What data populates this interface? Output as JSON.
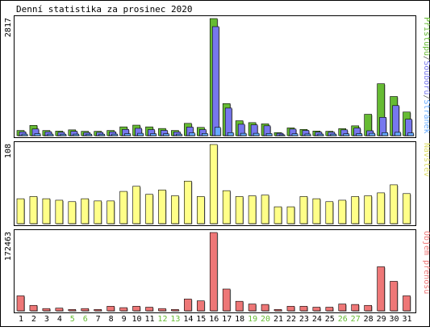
{
  "title": "Denní statistika za prosinec 2020",
  "colors": {
    "hits": "#66bb33",
    "files": "#7777ee",
    "pages": "#66aaff",
    "visits": "#ffff88",
    "kbytes": "#ee7777",
    "day_normal": "#000000",
    "day_weekend": "#66bb33",
    "frame": "#000000",
    "background": "#ffffff"
  },
  "chart_data": [
    {
      "type": "bar",
      "panel": "top",
      "ymax_label": "2817",
      "ylim": [
        0,
        2817
      ],
      "legend_placement": "right-vertical",
      "legend": {
        "pages": "Stránek",
        "separator1": "/",
        "files": "Souborů",
        "separator2": "/",
        "hits": "Přístupů"
      },
      "categories": [
        "1",
        "2",
        "3",
        "4",
        "5",
        "6",
        "7",
        "8",
        "9",
        "10",
        "11",
        "12",
        "13",
        "14",
        "15",
        "16",
        "17",
        "18",
        "19",
        "20",
        "21",
        "22",
        "23",
        "24",
        "25",
        "26",
        "27",
        "28",
        "29",
        "30",
        "31"
      ],
      "weekend_days": [
        "5",
        "6",
        "12",
        "13",
        "19",
        "20",
        "26",
        "27"
      ],
      "series": [
        {
          "name": "Přístupů",
          "key": "hits",
          "values": [
            124,
            246,
            123,
            108,
            139,
            104,
            104,
            124,
            211,
            252,
            211,
            172,
            124,
            295,
            198,
            2817,
            771,
            358,
            313,
            283,
            73,
            186,
            150,
            111,
            104,
            168,
            236,
            514,
            1249,
            942,
            568
          ]
        },
        {
          "name": "Souborů",
          "key": "files",
          "values": [
            92,
            160,
            94,
            81,
            104,
            75,
            79,
            92,
            150,
            176,
            145,
            126,
            89,
            206,
            146,
            2623,
            663,
            274,
            260,
            237,
            56,
            158,
            125,
            85,
            83,
            139,
            182,
            117,
            440,
            723,
            394
          ]
        },
        {
          "name": "Stránek",
          "key": "pages",
          "values": [
            37,
            48,
            37,
            35,
            37,
            35,
            35,
            37,
            48,
            56,
            48,
            44,
            37,
            65,
            52,
            199,
            72,
            56,
            56,
            52,
            20,
            44,
            40,
            37,
            37,
            44,
            48,
            56,
            72,
            80,
            64
          ]
        }
      ]
    },
    {
      "type": "bar",
      "panel": "middle",
      "ymax_label": "108",
      "ylim": [
        0,
        108
      ],
      "legend_placement": "right-vertical",
      "legend": {
        "visits": "Návštěv"
      },
      "categories": [
        "1",
        "2",
        "3",
        "4",
        "5",
        "6",
        "7",
        "8",
        "9",
        "10",
        "11",
        "12",
        "13",
        "14",
        "15",
        "16",
        "17",
        "18",
        "19",
        "20",
        "21",
        "22",
        "23",
        "24",
        "25",
        "26",
        "27",
        "28",
        "29",
        "30",
        "31"
      ],
      "series": [
        {
          "name": "Návštěv",
          "key": "visits",
          "values": [
            34,
            37,
            34,
            32,
            30,
            34,
            31,
            31,
            44,
            51,
            40,
            46,
            38,
            58,
            37,
            108,
            45,
            37,
            38,
            39,
            23,
            23,
            37,
            34,
            30,
            32,
            37,
            38,
            42,
            53,
            41
          ]
        }
      ]
    },
    {
      "type": "bar",
      "panel": "bottom",
      "ymax_label": "172463",
      "ylim": [
        0,
        172463
      ],
      "legend_placement": "right-vertical",
      "legend": {
        "kbytes": "Objem přenosu"
      },
      "categories": [
        "1",
        "2",
        "3",
        "4",
        "5",
        "6",
        "7",
        "8",
        "9",
        "10",
        "11",
        "12",
        "13",
        "14",
        "15",
        "16",
        "17",
        "18",
        "19",
        "20",
        "21",
        "22",
        "23",
        "24",
        "25",
        "26",
        "27",
        "28",
        "29",
        "30",
        "31"
      ],
      "series": [
        {
          "name": "Objem přenosu",
          "key": "kbytes",
          "values": [
            33000,
            12000,
            5000,
            6000,
            3000,
            5000,
            3000,
            10000,
            7000,
            10000,
            8000,
            5000,
            3000,
            26000,
            22000,
            172463,
            48000,
            21000,
            15000,
            14000,
            3000,
            10000,
            10000,
            8000,
            8000,
            15000,
            14000,
            12000,
            97000,
            65000,
            33000
          ]
        }
      ]
    }
  ]
}
